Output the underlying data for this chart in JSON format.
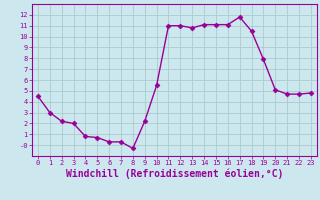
{
  "x": [
    0,
    1,
    2,
    3,
    4,
    5,
    6,
    7,
    8,
    9,
    10,
    11,
    12,
    13,
    14,
    15,
    16,
    17,
    18,
    19,
    20,
    21,
    22,
    23
  ],
  "y": [
    4.5,
    3.0,
    2.2,
    2.0,
    0.8,
    0.7,
    0.3,
    0.3,
    -0.3,
    2.2,
    5.5,
    11.0,
    11.0,
    10.8,
    11.1,
    11.1,
    11.1,
    11.8,
    10.5,
    7.9,
    5.1,
    4.7,
    4.7,
    4.8
  ],
  "line_color": "#990099",
  "marker": "D",
  "markersize": 2.5,
  "linewidth": 1.0,
  "xlabel": "Windchill (Refroidissement éolien,°C)",
  "xlabel_fontsize": 7,
  "bg_color": "#cce8ee",
  "grid_color": "#aacccc",
  "tick_color": "#990099",
  "label_color": "#990099",
  "xlim": [
    -0.5,
    23.5
  ],
  "ylim": [
    -1.0,
    13.0
  ],
  "ytick_vals": [
    0,
    1,
    2,
    3,
    4,
    5,
    6,
    7,
    8,
    9,
    10,
    11,
    12
  ],
  "ytick_labels": [
    "-0",
    "1",
    "2",
    "3",
    "4",
    "5",
    "6",
    "7",
    "8",
    "9",
    "10",
    "11",
    "12"
  ],
  "xticks": [
    0,
    1,
    2,
    3,
    4,
    5,
    6,
    7,
    8,
    9,
    10,
    11,
    12,
    13,
    14,
    15,
    16,
    17,
    18,
    19,
    20,
    21,
    22,
    23
  ]
}
